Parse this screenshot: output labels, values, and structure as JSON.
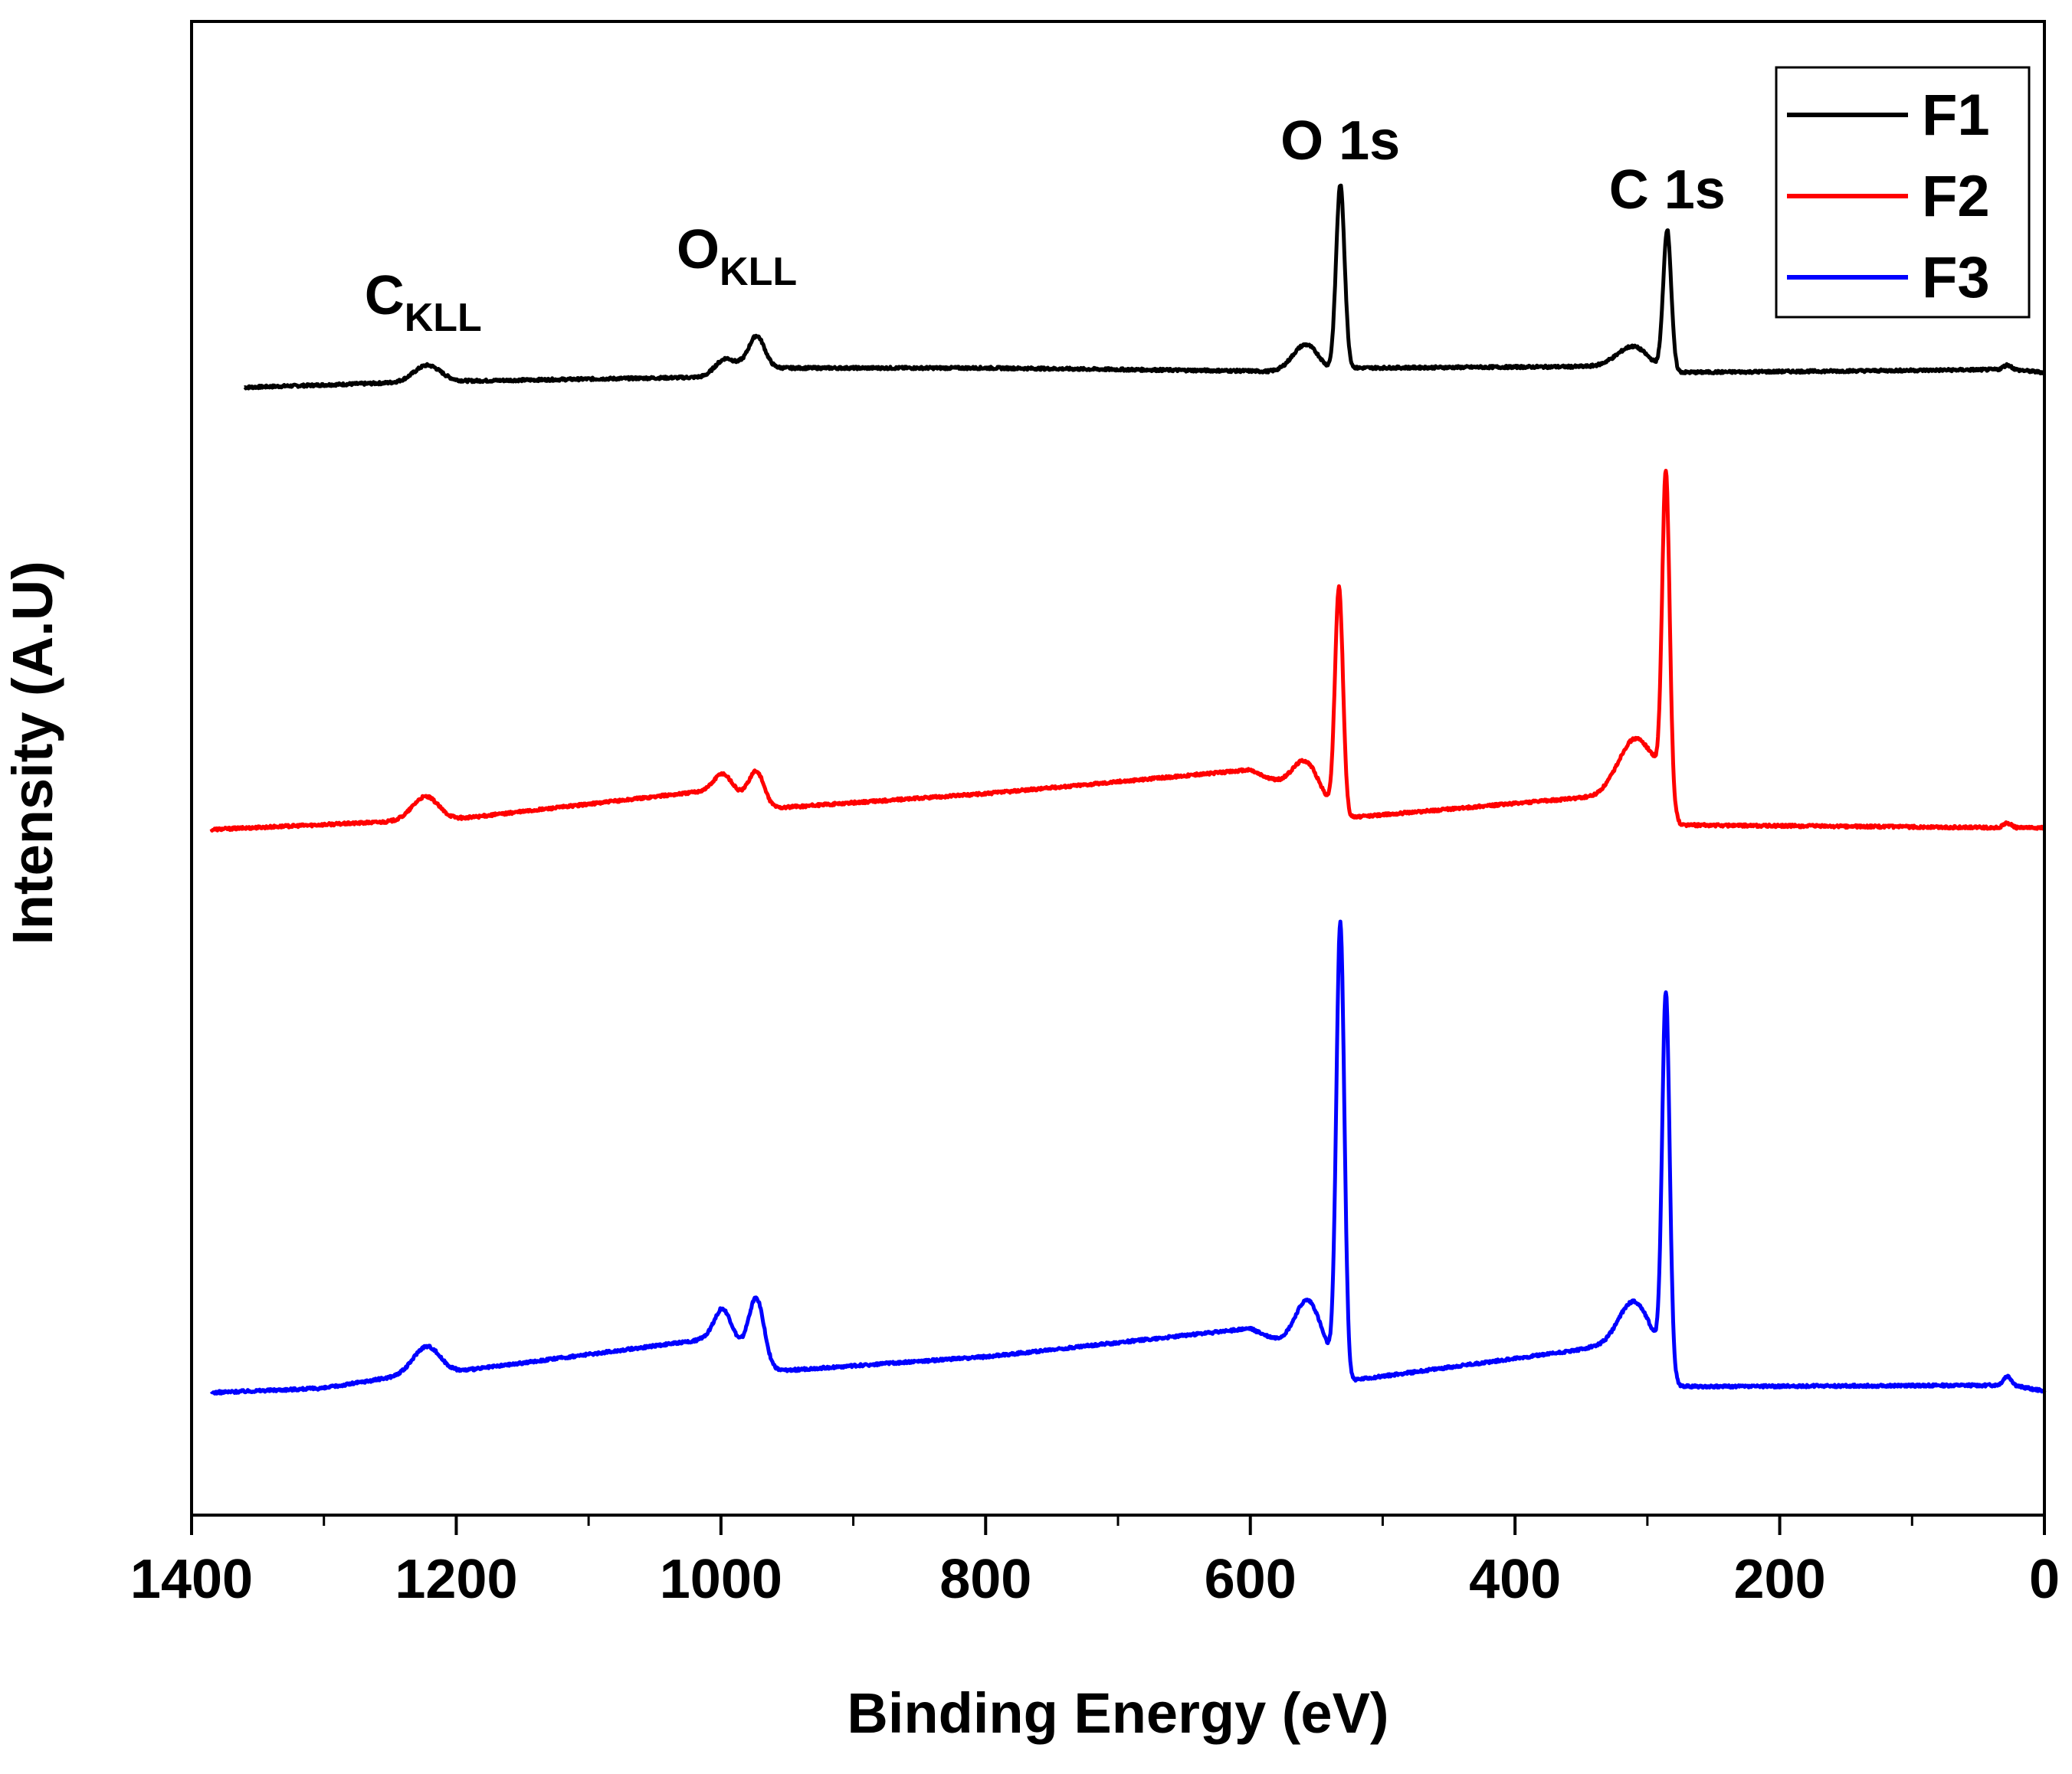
{
  "chart_data": {
    "type": "line",
    "title": "",
    "xlabel": "Binding Energy (eV)",
    "ylabel": "Intensity (A.U)",
    "xlim": [
      1400,
      0
    ],
    "x_reversed": true,
    "xticks": [
      1400,
      1200,
      1000,
      800,
      600,
      400,
      200,
      0
    ],
    "xtick_labels": [
      "1400",
      "1200",
      "1000",
      "800",
      "600",
      "400",
      "200",
      "0"
    ],
    "ylim": [
      0,
      100
    ],
    "yticks_shown": false,
    "grid": false,
    "legend": {
      "position": "top-right",
      "entries": [
        "F1",
        "F2",
        "F3"
      ]
    },
    "annotations": [
      {
        "main": "C",
        "sub": "KLL",
        "x": 1225
      },
      {
        "main": "O",
        "sub": "KLL",
        "x": 988
      },
      {
        "main": "O 1s",
        "sub": "",
        "x": 532
      },
      {
        "main": "C 1s",
        "sub": "",
        "x": 285
      }
    ],
    "series": [
      {
        "name": "F1",
        "color": "#000000",
        "x_range": [
          1360,
          0
        ],
        "baseline": [
          [
            1360,
            75.5
          ],
          [
            1215,
            75.9
          ],
          [
            1000,
            76.2
          ],
          [
            985,
            76.9
          ],
          [
            960,
            76.8
          ],
          [
            800,
            76.8
          ],
          [
            600,
            76.6
          ],
          [
            540,
            76.4
          ],
          [
            525,
            76.8
          ],
          [
            330,
            76.9
          ],
          [
            300,
            76.5
          ],
          [
            275,
            76.5
          ],
          [
            25,
            76.7
          ],
          [
            0,
            76.5
          ]
        ],
        "peaks": [
          {
            "x": 1222,
            "height": 1.1,
            "width": 10
          },
          {
            "x": 998,
            "height": 1.1,
            "width": 7
          },
          {
            "x": 973,
            "height": 2.1,
            "width": 6
          },
          {
            "x": 558,
            "height": 1.9,
            "width": 10
          },
          {
            "x": 532,
            "height": 12.4,
            "width": 3.2
          },
          {
            "x": 310,
            "height": 1.6,
            "width": 12
          },
          {
            "x": 285,
            "height": 9.4,
            "width": 3.0
          },
          {
            "x": 28,
            "height": 0.3,
            "width": 3
          }
        ]
      },
      {
        "name": "F2",
        "color": "#ff0000",
        "x_range": [
          1385,
          0
        ],
        "baseline": [
          [
            1385,
            45.9
          ],
          [
            1230,
            46.5
          ],
          [
            1210,
            46.5
          ],
          [
            1000,
            48.6
          ],
          [
            965,
            47.3
          ],
          [
            800,
            48.3
          ],
          [
            600,
            49.9
          ],
          [
            540,
            47.3
          ],
          [
            525,
            46.7
          ],
          [
            340,
            48.1
          ],
          [
            295,
            49.4
          ],
          [
            275,
            46.2
          ],
          [
            0,
            46.0
          ]
        ],
        "peaks": [
          {
            "x": 1223,
            "height": 1.6,
            "width": 10
          },
          {
            "x": 998,
            "height": 1.1,
            "width": 7
          },
          {
            "x": 973,
            "height": 2.2,
            "width": 6
          },
          {
            "x": 558,
            "height": 2.4,
            "width": 10
          },
          {
            "x": 533,
            "height": 15.0,
            "width": 3.0
          },
          {
            "x": 310,
            "height": 3.0,
            "width": 12
          },
          {
            "x": 286,
            "height": 21.6,
            "width": 2.8
          },
          {
            "x": 28,
            "height": 0.3,
            "width": 3
          }
        ]
      },
      {
        "name": "F3",
        "color": "#0000ff",
        "x_range": [
          1385,
          0
        ],
        "baseline": [
          [
            1385,
            8.2
          ],
          [
            1300,
            8.5
          ],
          [
            1230,
            9.5
          ],
          [
            1210,
            9.5
          ],
          [
            1000,
            11.9
          ],
          [
            965,
            9.6
          ],
          [
            800,
            10.6
          ],
          [
            600,
            12.5
          ],
          [
            540,
            10.0
          ],
          [
            525,
            9.0
          ],
          [
            340,
            11.2
          ],
          [
            295,
            10.6
          ],
          [
            275,
            8.6
          ],
          [
            25,
            8.7
          ],
          [
            0,
            8.3
          ]
        ],
        "peaks": [
          {
            "x": 1222,
            "height": 1.8,
            "width": 10
          },
          {
            "x": 998,
            "height": 2.0,
            "width": 7
          },
          {
            "x": 973,
            "height": 4.4,
            "width": 6
          },
          {
            "x": 556,
            "height": 3.7,
            "width": 10
          },
          {
            "x": 532,
            "height": 30.0,
            "width": 3.0
          },
          {
            "x": 310,
            "height": 3.5,
            "width": 12
          },
          {
            "x": 286,
            "height": 24.9,
            "width": 2.8
          },
          {
            "x": 28,
            "height": 0.6,
            "width": 3
          }
        ]
      }
    ]
  }
}
